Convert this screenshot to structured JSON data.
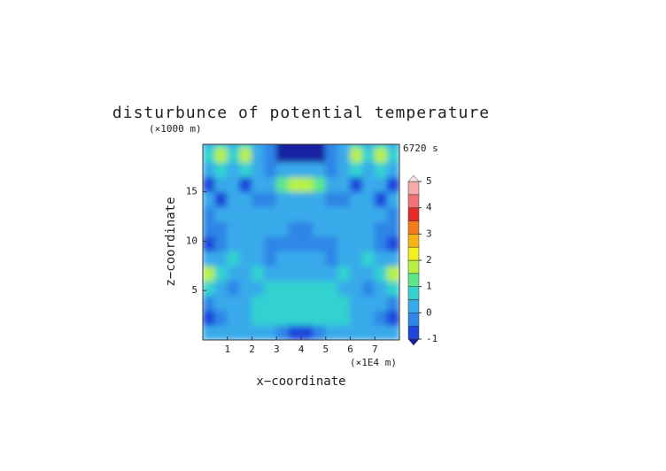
{
  "chart_data": {
    "type": "contour",
    "title": "disturbunce of potential temperature",
    "y_unit_label": "(×1000 m)",
    "time_label": "6720 s",
    "x_label": "x−coordinate",
    "x_unit_label": "(×1E4 m)",
    "y_label": "z−coordinate",
    "xlim": [
      0,
      8
    ],
    "ylim": [
      0,
      19.8
    ],
    "xticks": [
      1,
      2,
      3,
      4,
      5,
      6,
      7
    ],
    "yticks": [
      5,
      10,
      15
    ],
    "x": [
      0.25,
      0.75,
      1.25,
      1.75,
      2.25,
      2.75,
      3.25,
      3.75,
      4.25,
      4.75,
      5.25,
      5.75,
      6.25,
      6.75,
      7.25,
      7.75
    ],
    "y": [
      0.75,
      2.25,
      3.75,
      5.25,
      6.75,
      8.25,
      9.75,
      11.25,
      12.75,
      14.25,
      15.75,
      17.25,
      18.75,
      20.25
    ],
    "z": [
      [
        0,
        0.2,
        0.3,
        0.3,
        0.2,
        0.1,
        -0.3,
        -0.8,
        -0.8,
        -0.3,
        0.1,
        0.2,
        0.3,
        0.3,
        0.2,
        0
      ],
      [
        -0.8,
        -0.4,
        0,
        0.3,
        0.5,
        0.5,
        0.7,
        0.8,
        0.8,
        0.7,
        0.5,
        0.5,
        0.3,
        0,
        -0.4,
        -0.8
      ],
      [
        -0.2,
        0,
        0.3,
        0.4,
        0.6,
        0.7,
        0.8,
        0.9,
        0.9,
        0.8,
        0.7,
        0.6,
        0.4,
        0.3,
        0,
        -0.2
      ],
      [
        0.5,
        0,
        -0.2,
        0,
        0.4,
        0.6,
        0.8,
        0.8,
        0.8,
        0.8,
        0.6,
        0.4,
        0,
        -0.2,
        0,
        0.5
      ],
      [
        1.5,
        0.6,
        0.2,
        0.3,
        0.5,
        0.3,
        0.2,
        0.3,
        0.3,
        0.2,
        0.3,
        0.5,
        0.3,
        0.2,
        0.6,
        1.5
      ],
      [
        0.2,
        0.4,
        0.5,
        0.2,
        0,
        -0.1,
        0,
        0.1,
        0.1,
        0,
        -0.1,
        0,
        0.2,
        0.5,
        0.4,
        0.2
      ],
      [
        -0.7,
        -0.2,
        0,
        0.1,
        0,
        -0.1,
        -0.2,
        -0.5,
        -0.5,
        -0.2,
        -0.1,
        0,
        0.1,
        0,
        -0.2,
        -0.7
      ],
      [
        -0.4,
        -0.1,
        0,
        0.1,
        0.2,
        0.1,
        0,
        -0.1,
        -0.1,
        0,
        0.1,
        0.2,
        0.1,
        0,
        -0.1,
        -0.4
      ],
      [
        -0.1,
        0.1,
        0.2,
        0.1,
        0,
        0,
        0.1,
        0.2,
        0.2,
        0.1,
        0,
        0,
        0.1,
        0.2,
        0.1,
        -0.1
      ],
      [
        0,
        -0.8,
        0.2,
        0,
        -0.2,
        -0.1,
        0.3,
        0.3,
        0.3,
        0.3,
        -0.1,
        -0.2,
        0,
        0.2,
        -0.8,
        0
      ],
      [
        -0.6,
        0.1,
        0.3,
        -0.8,
        0,
        0.3,
        1,
        1.6,
        1.6,
        1,
        0.3,
        0,
        -0.8,
        0.3,
        0.1,
        -0.6
      ],
      [
        0.3,
        0.8,
        0.4,
        0.5,
        0.2,
        -0.2,
        0.2,
        0.4,
        0.4,
        0.2,
        -0.2,
        0.2,
        0.5,
        0.4,
        0.8,
        0.3
      ],
      [
        0.8,
        1.8,
        0.6,
        1.5,
        0.3,
        -0.5,
        -1.2,
        -1.2,
        -1.2,
        -1.2,
        -0.5,
        0.3,
        1.5,
        0.6,
        1.8,
        0.8
      ],
      [
        0.2,
        0.5,
        0.3,
        0.5,
        0.2,
        -0.5,
        -1.2,
        -1.2,
        -1.2,
        -1.2,
        -0.5,
        0.2,
        0.5,
        0.3,
        0.5,
        0.2
      ]
    ],
    "colorbar": {
      "levels": [
        -1,
        -0.5,
        0,
        0.5,
        1,
        1.5,
        2,
        2.5,
        3,
        3.5,
        4,
        4.5,
        5
      ],
      "colors": [
        "#1e46dc",
        "#2f86e6",
        "#39aaea",
        "#33d2d0",
        "#5ee68a",
        "#b8f046",
        "#f2f020",
        "#f5b414",
        "#f57a1e",
        "#e62828",
        "#f07272",
        "#f5aaaa"
      ],
      "under_color": "#1420a0",
      "over_color": "#f8e4e4",
      "ticks": [
        -1,
        0,
        1,
        2,
        3,
        4,
        5
      ]
    }
  }
}
